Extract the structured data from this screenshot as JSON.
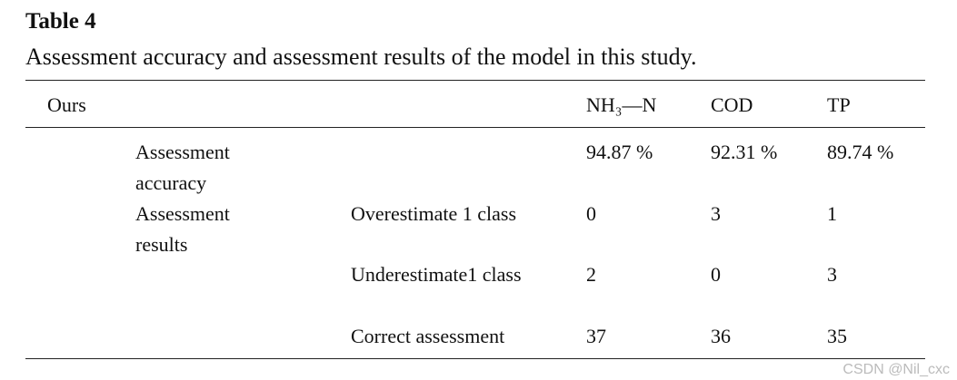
{
  "title": "Table 4",
  "caption": "Assessment accuracy and assessment results of the model in this study.",
  "table": {
    "header": [
      "Ours",
      "NH₃—N",
      "COD",
      "TP"
    ],
    "rows": [
      {
        "label": "Assessment accuracy",
        "values": [
          "94.87 %",
          "92.31 %",
          "89.74 %"
        ]
      },
      {
        "label": "Assessment results",
        "groups": [
          {
            "label": "Overestimate 1 class",
            "values": [
              0,
              3,
              1
            ]
          },
          {
            "label": "Underestimate1 class",
            "values": [
              2,
              0,
              3
            ]
          },
          {
            "label": "Correct assessment",
            "values": [
              37,
              36,
              35
            ]
          }
        ]
      }
    ]
  },
  "watermark": "CSDN @Nil_cxc"
}
